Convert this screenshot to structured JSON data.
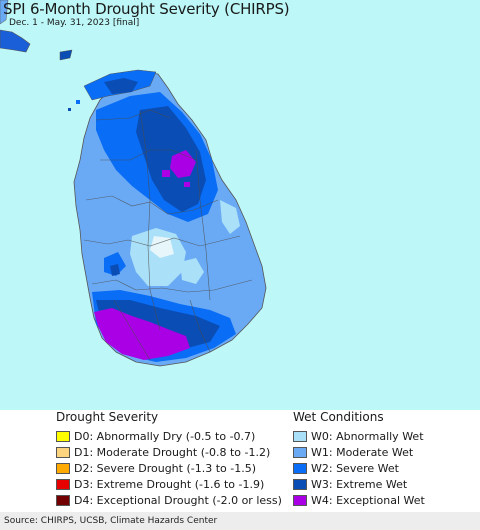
{
  "map": {
    "title": "SPI 6-Month Drought Severity (CHIRPS)",
    "subtitle": "Dec. 1 - May. 31, 2023 [final]",
    "ocean_color": "#bdf7f7"
  },
  "legend": {
    "drought_heading": "Drought Severity",
    "wet_heading": "Wet Conditions",
    "drought_items": [
      {
        "code": "D0",
        "label": "D0: Abnormally Dry (-0.5 to -0.7)",
        "color": "#ffff00"
      },
      {
        "code": "D1",
        "label": "D1: Moderate Drought (-0.8 to -1.2)",
        "color": "#fcd37f"
      },
      {
        "code": "D2",
        "label": "D2: Severe Drought (-1.3 to -1.5)",
        "color": "#ffaa00"
      },
      {
        "code": "D3",
        "label": "D3: Extreme Drought (-1.6 to -1.9)",
        "color": "#e60000"
      },
      {
        "code": "D4",
        "label": "D4: Exceptional Drought (-2.0 or less)",
        "color": "#730000"
      }
    ],
    "wet_items": [
      {
        "code": "W0",
        "label": "W0: Abnormally Wet",
        "color": "#aae0f8"
      },
      {
        "code": "W1",
        "label": "W1: Moderate Wet",
        "color": "#6aaaf5"
      },
      {
        "code": "W2",
        "label": "W2: Severe Wet",
        "color": "#0a6df5"
      },
      {
        "code": "W3",
        "label": "W3: Extreme Wet",
        "color": "#0a4db4"
      },
      {
        "code": "W4",
        "label": "W4: Exceptional Wet",
        "color": "#aa00e6"
      }
    ]
  },
  "footer": {
    "source": "Source: CHIRPS, UCSB, Climate Hazards Center"
  }
}
